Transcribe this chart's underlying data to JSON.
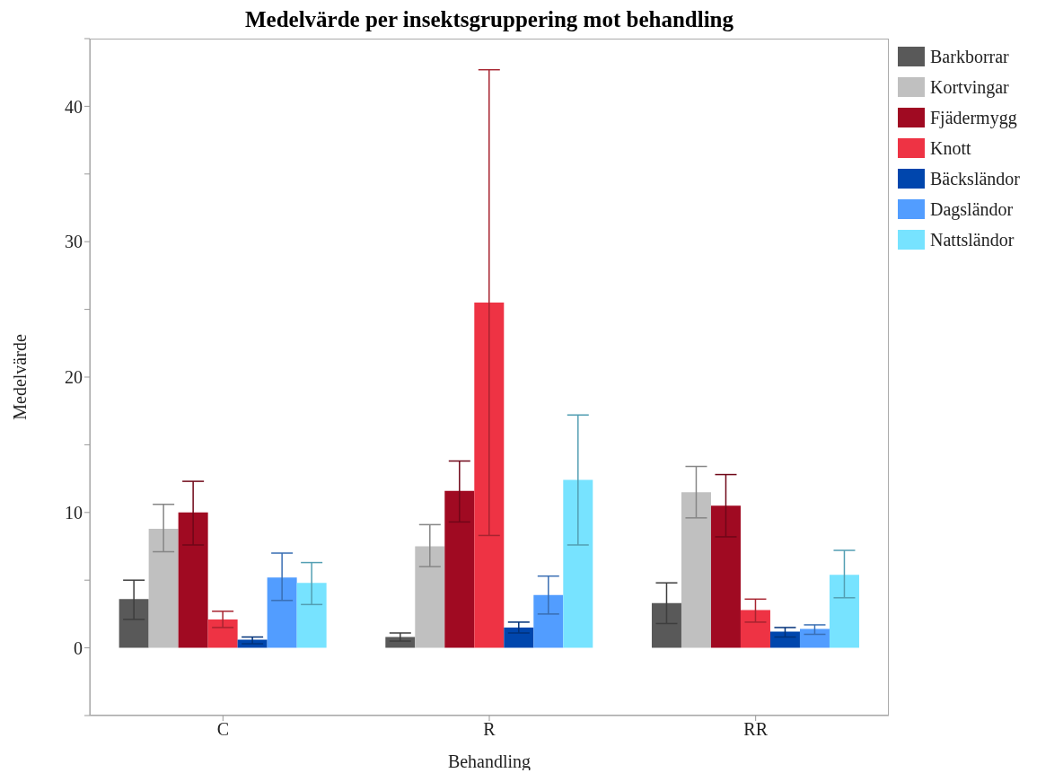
{
  "chart_data": {
    "type": "bar",
    "title": "Medelvärde per insektsgruppering mot behandling",
    "xlabel": "Behandling",
    "ylabel": "Medelvärde",
    "categories": [
      "C",
      "R",
      "RR"
    ],
    "series": [
      {
        "name": "Barkborrar",
        "color": "#595959",
        "values": [
          3.6,
          0.8,
          3.3
        ],
        "errors": [
          [
            2.1,
            5.0
          ],
          [
            0.5,
            1.1
          ],
          [
            1.8,
            4.8
          ]
        ]
      },
      {
        "name": "Kortvingar",
        "color": "#c0c0c0",
        "values": [
          8.8,
          7.5,
          11.5
        ],
        "errors": [
          [
            7.1,
            10.6
          ],
          [
            6.0,
            9.1
          ],
          [
            9.6,
            13.4
          ]
        ]
      },
      {
        "name": "Fjädermygg",
        "color": "#a00a22",
        "values": [
          10.0,
          11.6,
          10.5
        ],
        "errors": [
          [
            7.6,
            12.3
          ],
          [
            9.3,
            13.8
          ],
          [
            8.2,
            12.8
          ]
        ]
      },
      {
        "name": "Knott",
        "color": "#ee3344",
        "values": [
          2.1,
          25.5,
          2.8
        ],
        "errors": [
          [
            1.5,
            2.7
          ],
          [
            8.3,
            42.7
          ],
          [
            1.9,
            3.6
          ]
        ]
      },
      {
        "name": "Bäcksländor",
        "color": "#0046ad",
        "values": [
          0.6,
          1.5,
          1.2
        ],
        "errors": [
          [
            0.3,
            0.8
          ],
          [
            1.1,
            1.9
          ],
          [
            0.8,
            1.5
          ]
        ]
      },
      {
        "name": "Dagsländor",
        "color": "#529dff",
        "values": [
          5.2,
          3.9,
          1.4
        ],
        "errors": [
          [
            3.5,
            7.0
          ],
          [
            2.5,
            5.3
          ],
          [
            1.0,
            1.7
          ]
        ]
      },
      {
        "name": "Nattsländor",
        "color": "#77e3ff",
        "values": [
          4.8,
          12.4,
          5.4
        ],
        "errors": [
          [
            3.2,
            6.3
          ],
          [
            7.6,
            17.2
          ],
          [
            3.7,
            7.2
          ]
        ]
      }
    ],
    "ylim": [
      -5,
      45
    ],
    "yticks": [
      {
        "value": -5,
        "label": null
      },
      0,
      {
        "value": 5,
        "label": null
      },
      10,
      {
        "value": 15,
        "label": null
      },
      20,
      {
        "value": 25,
        "label": null
      },
      30,
      {
        "value": 35,
        "label": null
      },
      40,
      {
        "value": 45,
        "label": null
      }
    ],
    "grid": false,
    "legend": "right"
  }
}
